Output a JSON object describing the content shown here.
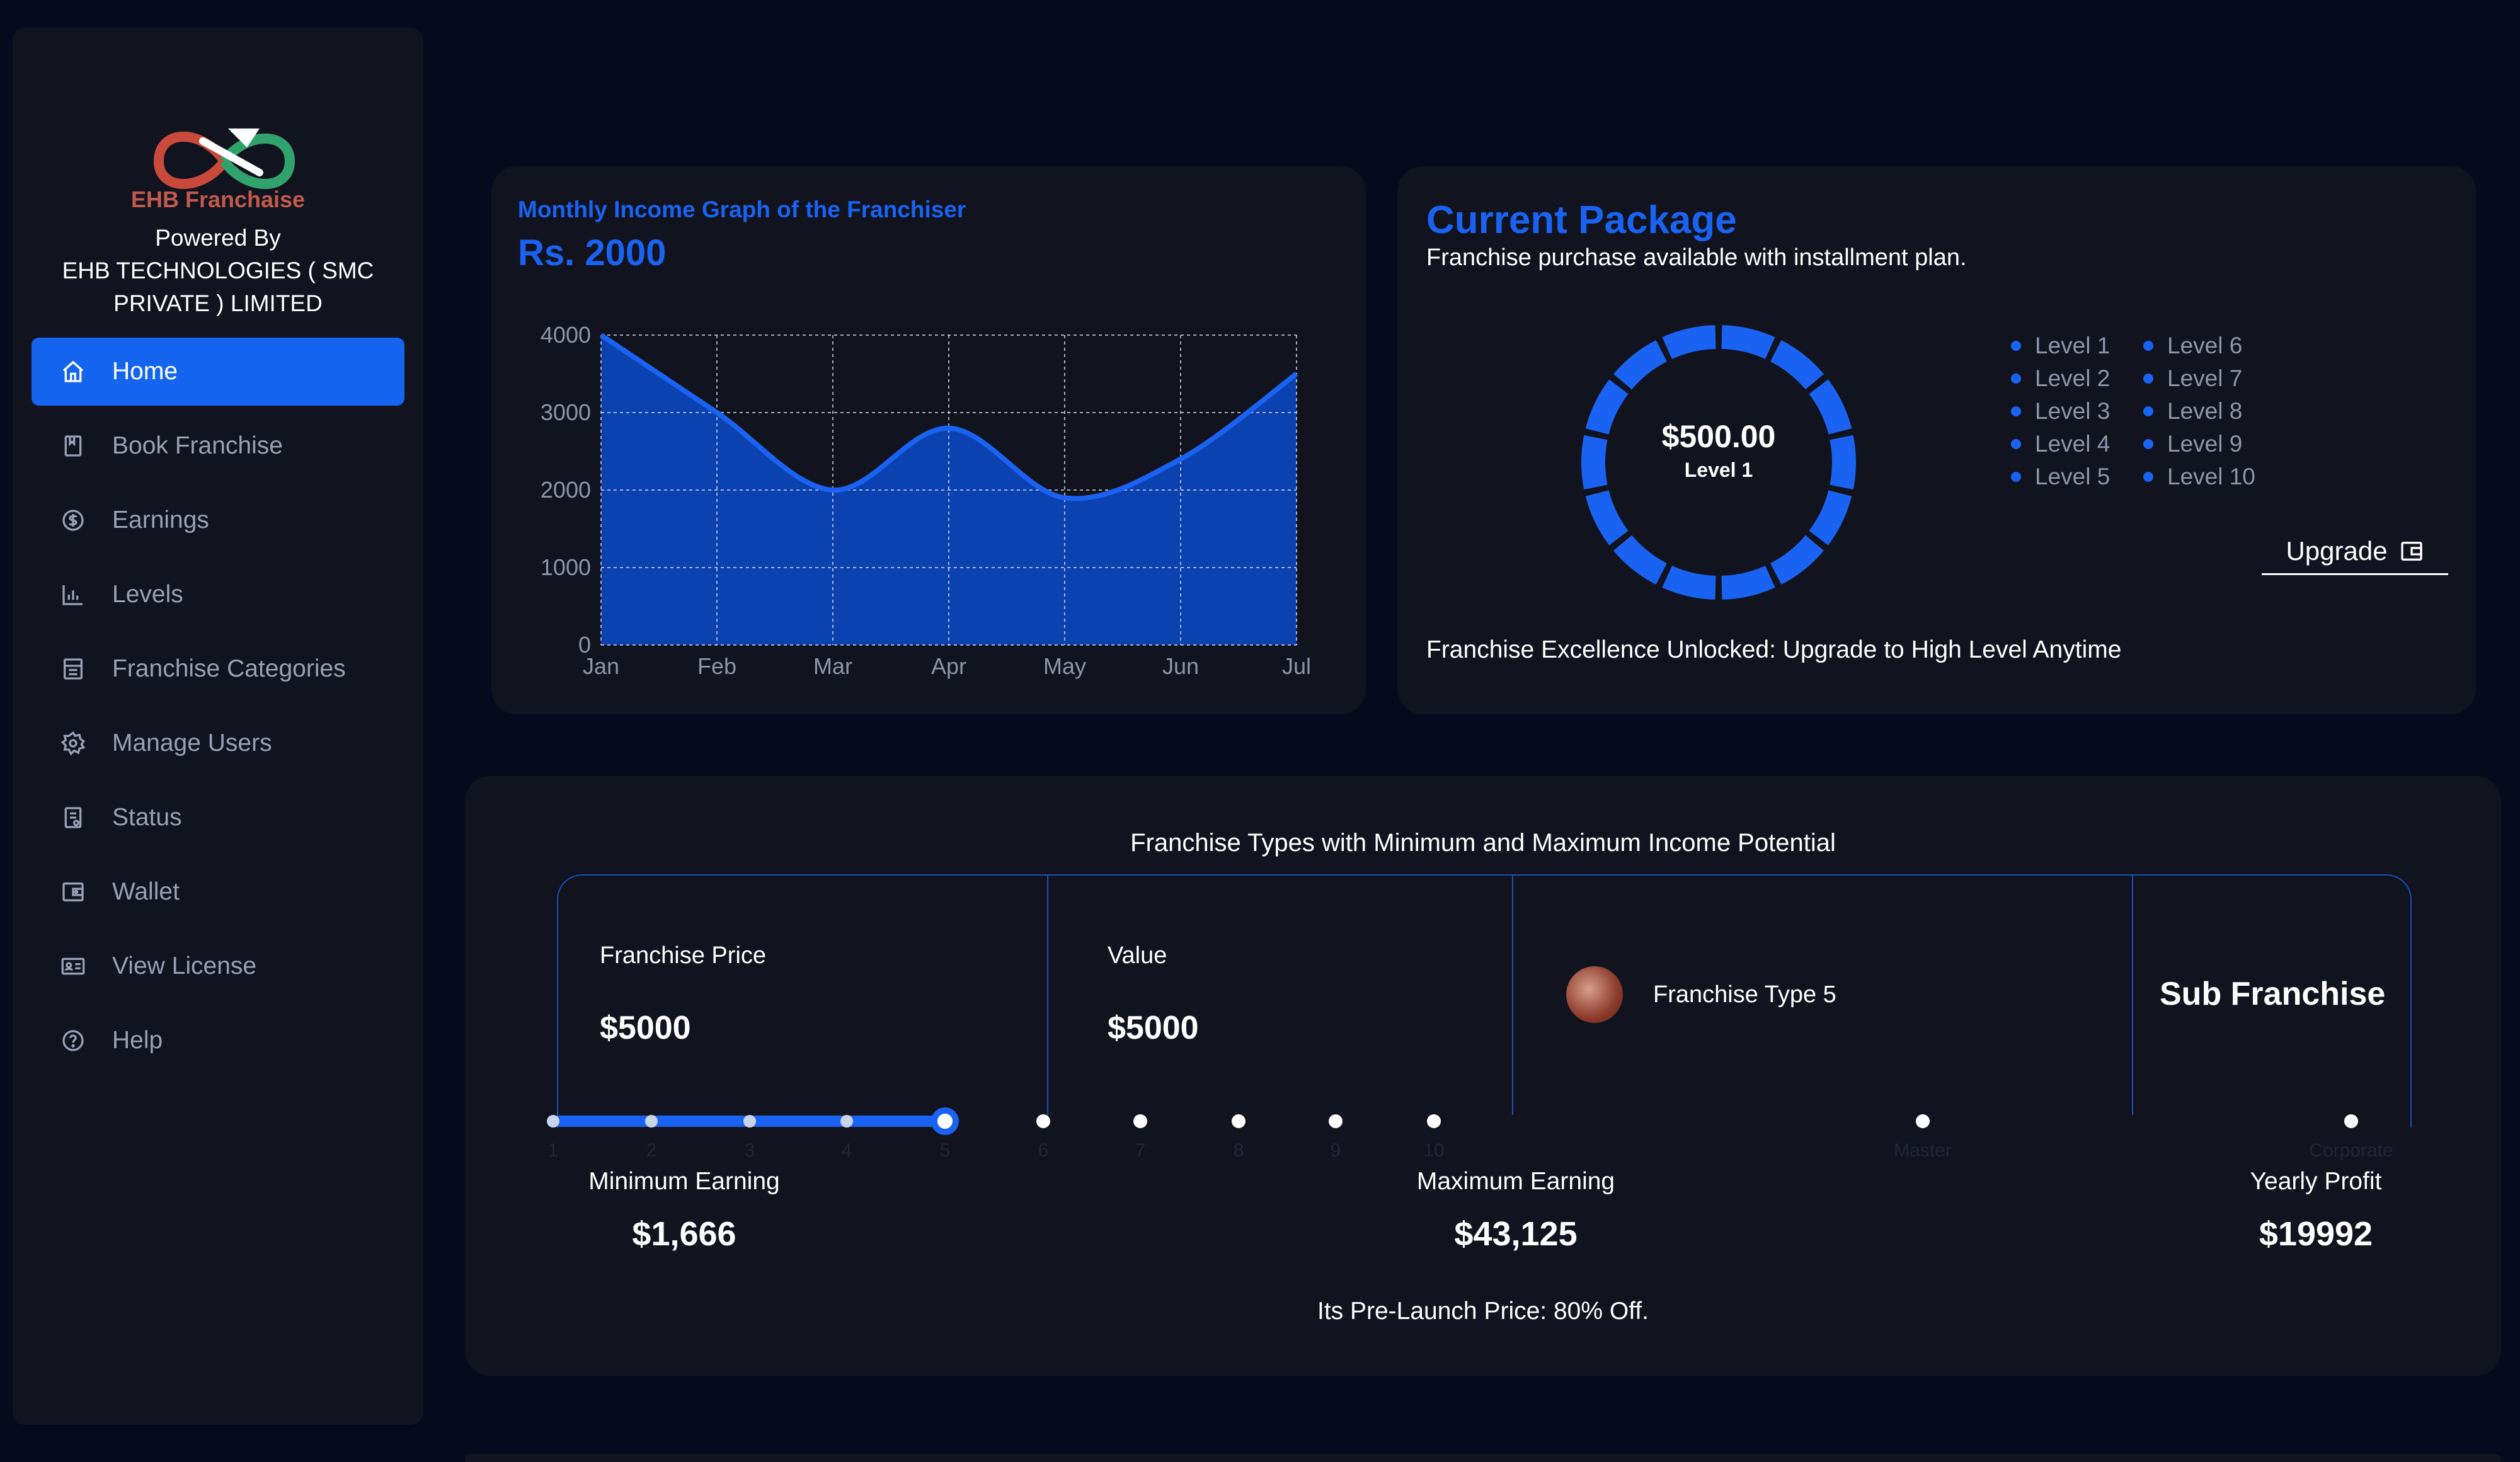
{
  "brand": {
    "logo_text": "EHB Franchaise",
    "powered_by": "Powered By",
    "company_line1": "EHB TECHNOLOGIES ( SMC",
    "company_line2": "PRIVATE ) LIMITED"
  },
  "sidebar": {
    "items": [
      {
        "label": "Home",
        "icon": "home-icon",
        "active": true
      },
      {
        "label": "Book Franchise",
        "icon": "book-icon"
      },
      {
        "label": "Earnings",
        "icon": "dollar-circle-icon"
      },
      {
        "label": "Levels",
        "icon": "bar-chart-icon"
      },
      {
        "label": "Franchise Categories",
        "icon": "store-icon"
      },
      {
        "label": "Manage Users",
        "icon": "gear-icon"
      },
      {
        "label": "Status",
        "icon": "document-icon"
      },
      {
        "label": "Wallet",
        "icon": "wallet-icon"
      },
      {
        "label": "View License",
        "icon": "id-card-icon"
      },
      {
        "label": "Help",
        "icon": "help-circle-icon"
      }
    ]
  },
  "income": {
    "title": "Monthly Income Graph of the Franchiser",
    "value": "Rs. 2000"
  },
  "chart_data": {
    "type": "area",
    "categories": [
      "Jan",
      "Feb",
      "Mar",
      "Apr",
      "May",
      "Jun",
      "Jul"
    ],
    "series": [
      {
        "values": [
          4000,
          3000,
          2000,
          2800,
          1900,
          2400,
          3500
        ]
      }
    ],
    "yticks": [
      0,
      1000,
      2000,
      3000,
      4000
    ],
    "ylim": [
      0,
      4000
    ],
    "grid": true,
    "colors": {
      "fill": "#0d43b8",
      "line": "#1a63f2",
      "grid": "#d8dbe6",
      "axis_text": "#8f95a8"
    }
  },
  "package": {
    "title": "Current Package",
    "subtitle": "Franchise purchase available with installment plan.",
    "amount": "$500.00",
    "level": "Level 1",
    "levels_col1": [
      "Level 1",
      "Level 2",
      "Level 3",
      "Level 4",
      "Level 5"
    ],
    "levels_col2": [
      "Level 6",
      "Level 7",
      "Level 8",
      "Level 9",
      "Level 10"
    ],
    "upgrade_label": "Upgrade",
    "footer": "Franchise Excellence Unlocked: Upgrade to High Level Anytime",
    "donut_segments": 14,
    "accent": "#1a63f2"
  },
  "types": {
    "title": "Franchise Types with Minimum and Maximum Income Potential",
    "franchise_price_label": "Franchise Price",
    "franchise_price": "$5000",
    "value_label": "Value",
    "value": "$5000",
    "franchise_type": "Franchise Type 5",
    "sub_franchise": "Sub Franchise",
    "steps": [
      "1",
      "2",
      "3",
      "4",
      "5",
      "6",
      "7",
      "8",
      "9",
      "10",
      "Master",
      "Corporate"
    ],
    "selected_step": 5,
    "min_label": "Minimum Earning",
    "min_value": "$1,666",
    "max_label": "Maximum Earning",
    "max_value": "$43,125",
    "yearly_label": "Yearly Profit",
    "yearly_value": "$19992",
    "prelaunch": "Its Pre-Launch Price: 80% Off."
  }
}
